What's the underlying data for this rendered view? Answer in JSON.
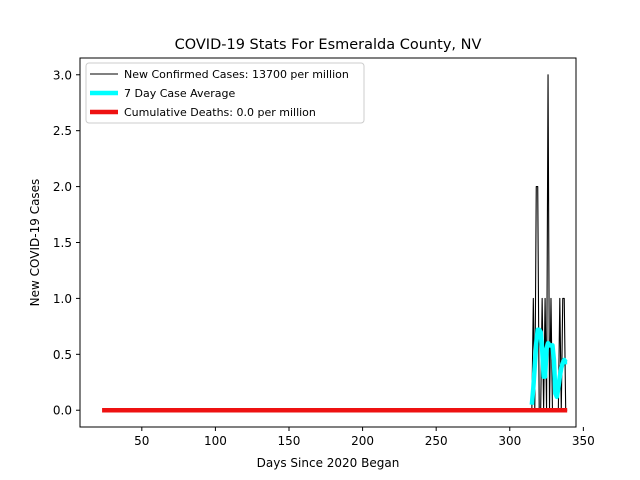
{
  "chart_data": {
    "type": "line",
    "title": "COVID-19 Stats For Esmeralda County, NV",
    "xlabel": "Days Since 2020 Began",
    "ylabel": "New COVID-19 Cases",
    "xlim": [
      8,
      345
    ],
    "ylim": [
      -0.15,
      3.15
    ],
    "x_ticks": [
      50,
      100,
      150,
      200,
      250,
      300,
      350
    ],
    "y_ticks": [
      0.0,
      0.5,
      1.0,
      1.5,
      2.0,
      2.5,
      3.0
    ],
    "x_tick_labels": [
      "50",
      "100",
      "150",
      "200",
      "250",
      "300",
      "350"
    ],
    "y_tick_labels": [
      "0.0",
      "0.5",
      "1.0",
      "1.5",
      "2.0",
      "2.5",
      "3.0"
    ],
    "grid": false,
    "legend_position": "top-left",
    "series": [
      {
        "name": "New Confirmed Cases: 13700 per million",
        "color": "#000000",
        "style": "thin-line",
        "x": [
          315,
          316,
          317,
          318,
          319,
          320,
          321,
          322,
          323,
          324,
          325,
          326,
          327,
          328,
          329,
          330,
          331,
          332,
          333,
          334,
          335,
          336,
          337,
          338,
          339
        ],
        "y": [
          0,
          1,
          0,
          2,
          2,
          0,
          0,
          1,
          0,
          1,
          0,
          3,
          0,
          1,
          0,
          0,
          0,
          0,
          0,
          1,
          0,
          1,
          1,
          0,
          0
        ]
      },
      {
        "name": "7 Day Case Average",
        "color": "#00ffff",
        "style": "thick-line",
        "x": [
          315,
          316,
          317,
          318,
          319,
          320,
          321,
          322,
          323,
          324,
          325,
          326,
          327,
          328,
          329,
          330,
          331,
          332,
          333,
          334,
          335,
          336,
          337,
          338,
          339
        ],
        "y": [
          0.05,
          0.2,
          0.4,
          0.6,
          0.72,
          0.72,
          0.7,
          0.55,
          0.3,
          0.3,
          0.55,
          0.6,
          0.58,
          0.58,
          0.58,
          0.45,
          0.15,
          0.12,
          0.2,
          0.3,
          0.38,
          0.42,
          0.45,
          0.43,
          0.43
        ]
      },
      {
        "name": "Cumulative Deaths: 0.0 per million",
        "color": "#ee1111",
        "style": "thick-line",
        "x": [
          23,
          339
        ],
        "y": [
          0,
          0
        ]
      }
    ]
  }
}
